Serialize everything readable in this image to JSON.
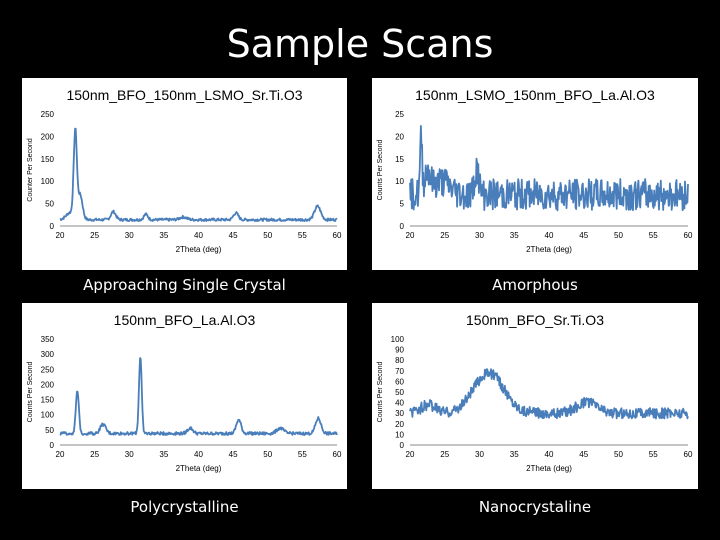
{
  "slide": {
    "title": "Sample Scans"
  },
  "captions": {
    "top_left": "Approaching Single Crystal",
    "top_right": "Amorphous",
    "bottom_left": "Polycrystalline",
    "bottom_right": "Nanocrystaline"
  },
  "colors": {
    "line": "#4a7ebb",
    "background": "#000000",
    "panel": "#ffffff"
  },
  "chart_data": [
    {
      "type": "line",
      "title": "150nm_BFO_150nm_LSMO_Sr.Ti.O3",
      "xlabel": "2Theta (deg)",
      "ylabel": "Counter Per Second",
      "xlim": [
        20,
        60
      ],
      "ylim": [
        0,
        250
      ],
      "xticks": [
        20,
        25,
        30,
        35,
        40,
        45,
        50,
        55,
        60
      ],
      "yticks": [
        0,
        50,
        100,
        150,
        200,
        250
      ],
      "baseline": 14,
      "noise": 3,
      "peaks": [
        {
          "x": 21.5,
          "h": 16,
          "w": 0.6
        },
        {
          "x": 22.2,
          "h": 190,
          "w": 0.22
        },
        {
          "x": 22.9,
          "h": 55,
          "w": 0.35
        },
        {
          "x": 27.7,
          "h": 18,
          "w": 0.35
        },
        {
          "x": 32.4,
          "h": 12,
          "w": 0.3
        },
        {
          "x": 37.8,
          "h": 6,
          "w": 0.5
        },
        {
          "x": 45.4,
          "h": 15,
          "w": 0.35
        },
        {
          "x": 57.2,
          "h": 30,
          "w": 0.45
        }
      ]
    },
    {
      "type": "line",
      "title": "150nm_LSMO_150nm_BFO_La.Al.O3",
      "xlabel": "2Theta (deg)",
      "ylabel": "Counts Per Second",
      "xlim": [
        20,
        60
      ],
      "ylim": [
        0,
        25
      ],
      "xticks": [
        20,
        25,
        30,
        35,
        40,
        45,
        50,
        55,
        60
      ],
      "yticks": [
        0,
        5,
        10,
        15,
        20,
        25
      ],
      "baseline": 7,
      "noise": 3.5,
      "peaks": [
        {
          "x": 21.6,
          "h": 12,
          "w": 0.15
        },
        {
          "x": 22.5,
          "h": 5,
          "w": 0.4
        },
        {
          "x": 24.5,
          "h": 3,
          "w": 1.2
        },
        {
          "x": 29.6,
          "h": 6,
          "w": 0.3
        }
      ]
    },
    {
      "type": "line",
      "title": "150nm_BFO_La.Al.O3",
      "xlabel": "2Theta (deg)",
      "ylabel": "Counts Per Second",
      "xlim": [
        20,
        60
      ],
      "ylim": [
        0,
        350
      ],
      "xticks": [
        20,
        25,
        30,
        35,
        40,
        45,
        50,
        55,
        60
      ],
      "yticks": [
        0,
        50,
        100,
        150,
        200,
        250,
        300,
        350
      ],
      "baseline": 38,
      "noise": 5,
      "peaks": [
        {
          "x": 22.5,
          "h": 140,
          "w": 0.22
        },
        {
          "x": 26.2,
          "h": 30,
          "w": 0.4
        },
        {
          "x": 31.6,
          "h": 255,
          "w": 0.2
        },
        {
          "x": 38.8,
          "h": 18,
          "w": 0.4
        },
        {
          "x": 45.8,
          "h": 45,
          "w": 0.35
        },
        {
          "x": 51.8,
          "h": 18,
          "w": 0.5
        },
        {
          "x": 57.3,
          "h": 50,
          "w": 0.4
        }
      ]
    },
    {
      "type": "line",
      "title": "150nm_BFO_Sr.Ti.O3",
      "xlabel": "2Theta (deg)",
      "ylabel": "Counts Per Second",
      "xlim": [
        20,
        60
      ],
      "ylim": [
        0,
        100
      ],
      "xticks": [
        20,
        25,
        30,
        35,
        40,
        45,
        50,
        55,
        60
      ],
      "yticks": [
        0,
        10,
        20,
        30,
        40,
        50,
        60,
        70,
        80,
        90,
        100
      ],
      "baseline": 30,
      "noise": 5,
      "peaks": [
        {
          "x": 22.6,
          "h": 8,
          "w": 1.0
        },
        {
          "x": 31.3,
          "h": 38,
          "w": 2.2
        },
        {
          "x": 45.5,
          "h": 10,
          "w": 1.5
        }
      ]
    }
  ]
}
